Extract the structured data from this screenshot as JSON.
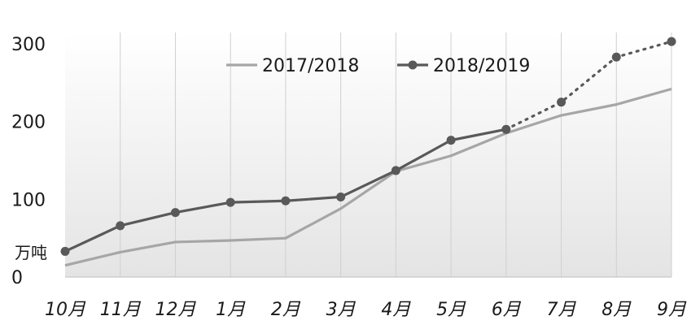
{
  "chart_data": {
    "type": "line",
    "categories": [
      "10月",
      "11月",
      "12月",
      "1月",
      "2月",
      "3月",
      "4月",
      "5月",
      "6月",
      "7月",
      "8月",
      "9月"
    ],
    "yticks": [
      "0",
      "100",
      "200",
      "300"
    ],
    "ylim": [
      0,
      300
    ],
    "ylabel": "万吨",
    "grid": "vertical",
    "legend": "top-center",
    "series": [
      {
        "name": "2017/2018",
        "values": [
          15,
          32,
          45,
          47,
          50,
          88,
          136,
          156,
          185,
          208,
          222,
          242
        ],
        "color": "#a6a6a6",
        "markers": false,
        "style": "solid"
      },
      {
        "name": "2018/2019",
        "values": [
          33,
          66,
          83,
          96,
          98,
          103,
          137,
          176,
          190,
          225,
          283,
          303
        ],
        "color": "#595959",
        "markers": true,
        "style": "solid",
        "projected_from_index": 8
      }
    ]
  }
}
